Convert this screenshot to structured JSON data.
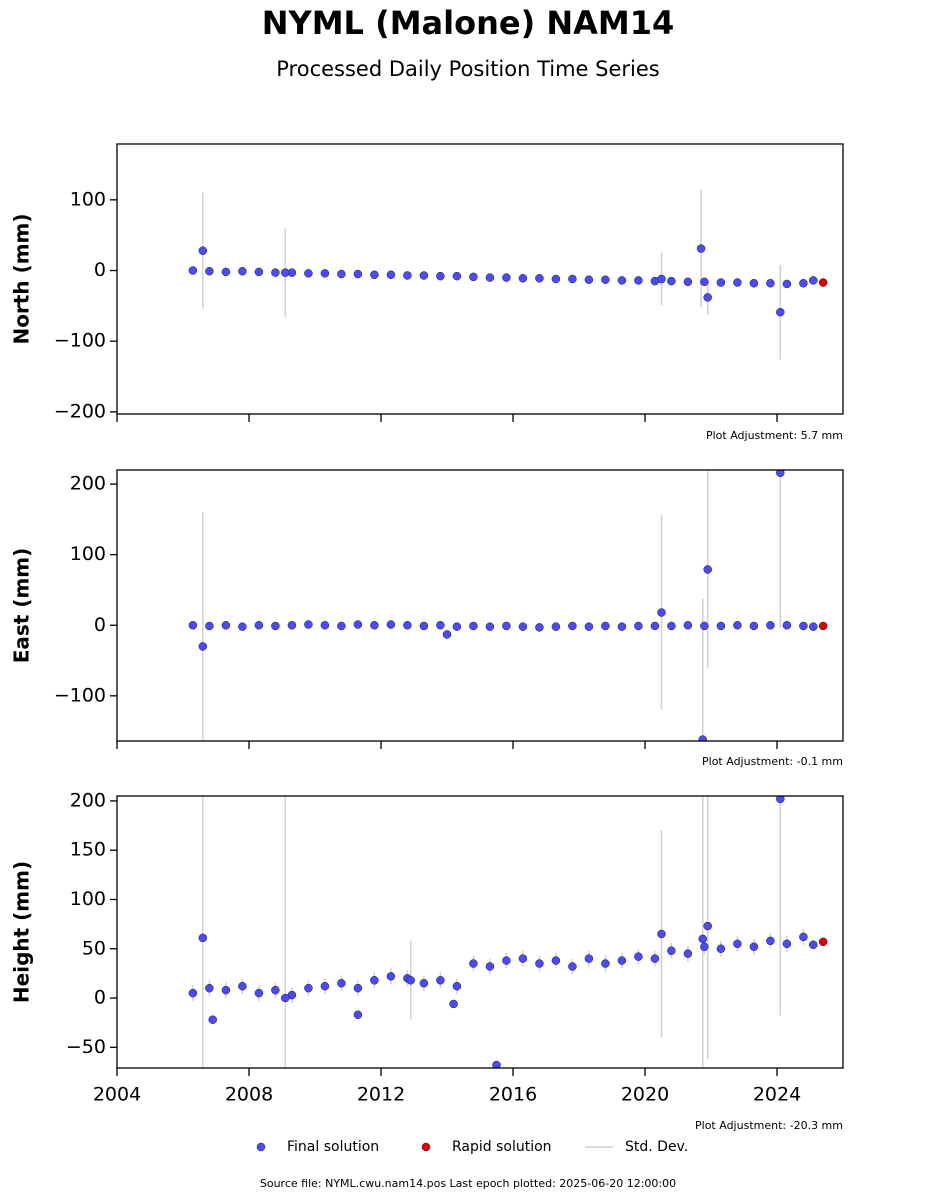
{
  "title": "NYML (Malone) NAM14",
  "subtitle": "Processed Daily Position Time Series",
  "footer": "Source file: NYML.cwu.nam14.pos  Last epoch plotted: 2025-06-20 12:00:00",
  "legend_errors": "Std. Dev.",
  "chart_data": [
    {
      "type": "scatter",
      "ylabel": "North (mm)",
      "annotation": "Plot Adjustment: 5.7 mm",
      "xlim": [
        2004,
        2026
      ],
      "xticks": [
        2004,
        2008,
        2012,
        2016,
        2020,
        2024
      ],
      "xtick_labels": false,
      "ylim": [
        -203,
        179
      ],
      "yticks": [
        {
          "value": -200,
          "label": "−200"
        },
        {
          "value": -100,
          "label": "−100"
        },
        0,
        100
      ],
      "series": [
        {
          "name": "Final solution",
          "color": "#4b4bf0",
          "x": [
            2006.3,
            2006.8,
            2007.3,
            2007.8,
            2008.3,
            2008.8,
            2009.3,
            2009.8,
            2010.3,
            2010.8,
            2011.3,
            2011.8,
            2012.3,
            2012.8,
            2013.3,
            2013.8,
            2014.3,
            2014.8,
            2015.3,
            2015.8,
            2016.3,
            2016.8,
            2017.3,
            2017.8,
            2018.3,
            2018.8,
            2019.3,
            2019.8,
            2020.3,
            2020.8,
            2021.3,
            2021.8,
            2022.3,
            2022.8,
            2023.3,
            2023.8,
            2024.3,
            2024.8,
            2006.6,
            2009.1,
            2020.5,
            2021.7,
            2021.9,
            2024.1,
            2025.1
          ],
          "values": [
            0,
            -1,
            -2,
            -1,
            -2,
            -3,
            -3,
            -4,
            -4,
            -5,
            -5,
            -6,
            -6,
            -7,
            -7,
            -8,
            -8,
            -9,
            -10,
            -10,
            -11,
            -11,
            -12,
            -12,
            -13,
            -13,
            -14,
            -14,
            -15,
            -15,
            -16,
            -16,
            -17,
            -17,
            -18,
            -18,
            -19,
            -18,
            28,
            -3,
            -12,
            31,
            -38,
            -59,
            -14
          ],
          "errors": [
            4,
            4,
            4,
            4,
            4,
            4,
            4,
            4,
            4,
            4,
            4,
            4,
            4,
            4,
            4,
            4,
            4,
            4,
            4,
            4,
            4,
            4,
            4,
            4,
            4,
            4,
            4,
            4,
            4,
            4,
            4,
            4,
            4,
            4,
            4,
            4,
            4,
            4,
            82,
            63,
            37,
            83,
            25,
            67,
            3
          ]
        },
        {
          "name": "Rapid solution",
          "color": "#e00000",
          "x": [
            2025.4
          ],
          "values": [
            -17
          ]
        }
      ]
    },
    {
      "type": "scatter",
      "ylabel": "East (mm)",
      "annotation": "Plot Adjustment: -0.1 mm",
      "xlim": [
        2004,
        2026
      ],
      "xticks": [
        2004,
        2008,
        2012,
        2016,
        2020,
        2024
      ],
      "xtick_labels": false,
      "ylim": [
        -164,
        220
      ],
      "yticks": [
        {
          "value": -100,
          "label": "−100"
        },
        0,
        100,
        200
      ],
      "series": [
        {
          "name": "Final solution",
          "color": "#4b4bf0",
          "x": [
            2006.3,
            2006.8,
            2007.3,
            2007.8,
            2008.3,
            2008.8,
            2009.3,
            2009.8,
            2010.3,
            2010.8,
            2011.3,
            2011.8,
            2012.3,
            2012.8,
            2013.3,
            2013.8,
            2014.3,
            2014.8,
            2015.3,
            2015.8,
            2016.3,
            2016.8,
            2017.3,
            2017.8,
            2018.3,
            2018.8,
            2019.3,
            2019.8,
            2020.3,
            2020.8,
            2021.3,
            2021.8,
            2022.3,
            2022.8,
            2023.3,
            2023.8,
            2024.3,
            2024.8,
            2006.6,
            2014,
            2020.5,
            2021.75,
            2021.9,
            2024.1,
            2025.1
          ],
          "values": [
            0,
            -1,
            0,
            -2,
            0,
            -1,
            0,
            1,
            0,
            -1,
            1,
            0,
            1,
            0,
            -1,
            0,
            -2,
            -1,
            -2,
            -1,
            -2,
            -3,
            -2,
            -1,
            -2,
            -1,
            -2,
            -1,
            -1,
            -1,
            0,
            -1,
            -1,
            0,
            -1,
            0,
            0,
            -1,
            -30,
            -13,
            18,
            -162,
            79,
            216,
            -2
          ],
          "errors": [
            5,
            5,
            5,
            5,
            5,
            5,
            5,
            5,
            5,
            5,
            5,
            5,
            5,
            5,
            5,
            5,
            5,
            5,
            5,
            5,
            5,
            5,
            5,
            5,
            5,
            5,
            5,
            5,
            5,
            5,
            5,
            5,
            5,
            5,
            5,
            5,
            5,
            5,
            190,
            3,
            138,
            200,
            140,
            220,
            3
          ]
        },
        {
          "name": "Rapid solution",
          "color": "#e00000",
          "x": [
            2025.4
          ],
          "values": [
            -1
          ]
        }
      ]
    },
    {
      "type": "scatter",
      "ylabel": "Height (mm)",
      "annotation": "Plot Adjustment: -20.3 mm",
      "xlim": [
        2004,
        2026
      ],
      "xticks": [
        2004,
        2008,
        2012,
        2016,
        2020,
        2024
      ],
      "xtick_labels": true,
      "ylim": [
        -71,
        205
      ],
      "yticks": [
        {
          "value": -50,
          "label": "−50"
        },
        0,
        50,
        100,
        150,
        200
      ],
      "series": [
        {
          "name": "Final solution",
          "color": "#4b4bf0",
          "x": [
            2006.3,
            2006.8,
            2007.3,
            2007.8,
            2008.3,
            2008.8,
            2009.3,
            2009.8,
            2010.3,
            2010.8,
            2011.3,
            2011.8,
            2012.3,
            2012.8,
            2013.3,
            2013.8,
            2014.3,
            2014.8,
            2015.3,
            2015.8,
            2016.3,
            2016.8,
            2017.3,
            2017.8,
            2018.3,
            2018.8,
            2019.3,
            2019.8,
            2020.3,
            2020.8,
            2021.3,
            2021.8,
            2022.3,
            2022.8,
            2023.3,
            2023.8,
            2024.3,
            2024.8,
            2006.6,
            2006.9,
            2009.1,
            2011.3,
            2012.9,
            2014.2,
            2015.5,
            2020.5,
            2021.75,
            2021.9,
            2024.1,
            2025.1
          ],
          "values": [
            5,
            10,
            8,
            12,
            5,
            8,
            3,
            10,
            12,
            15,
            10,
            18,
            22,
            20,
            15,
            18,
            12,
            35,
            32,
            38,
            40,
            35,
            38,
            32,
            40,
            35,
            38,
            42,
            40,
            48,
            45,
            52,
            50,
            55,
            52,
            58,
            55,
            62,
            61,
            -22,
            0,
            -17,
            18,
            -6,
            -68,
            65,
            60,
            73,
            202,
            54
          ],
          "errors": [
            8,
            8,
            8,
            8,
            8,
            8,
            8,
            8,
            8,
            8,
            8,
            8,
            8,
            8,
            8,
            8,
            8,
            8,
            8,
            8,
            8,
            8,
            8,
            8,
            8,
            8,
            8,
            8,
            8,
            8,
            8,
            8,
            8,
            8,
            8,
            8,
            8,
            8,
            150,
            3,
            210,
            3,
            40,
            3,
            3,
            105,
            200,
            135,
            220,
            3
          ]
        },
        {
          "name": "Rapid solution",
          "color": "#e00000",
          "x": [
            2025.4
          ],
          "values": [
            57
          ]
        }
      ]
    }
  ]
}
